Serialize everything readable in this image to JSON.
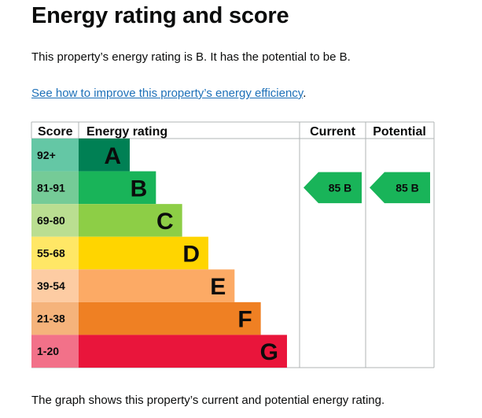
{
  "page": {
    "title": "Energy rating and score",
    "intro": "This property’s energy rating is B. It has the potential to be B.",
    "link": "See how to improve this property’s energy efficiency",
    "link_suffix": ".",
    "footer": "The graph shows this property’s current and potential energy rating."
  },
  "chart_data": {
    "type": "bar",
    "headers": {
      "score": "Score",
      "rating": "Energy rating",
      "current": "Current",
      "potential": "Potential"
    },
    "bands": [
      {
        "range": "92+",
        "letter": "A",
        "color": "#008054",
        "score_bg": "#64c7a5"
      },
      {
        "range": "81-91",
        "letter": "B",
        "color": "#19b459",
        "score_bg": "#75cb97"
      },
      {
        "range": "69-80",
        "letter": "C",
        "color": "#8dce46",
        "score_bg": "#bade91"
      },
      {
        "range": "55-68",
        "letter": "D",
        "color": "#ffd500",
        "score_bg": "#ffe766"
      },
      {
        "range": "39-54",
        "letter": "E",
        "color": "#fcaa65",
        "score_bg": "#fdcca3"
      },
      {
        "range": "21-38",
        "letter": "F",
        "color": "#ef8023",
        "score_bg": "#f5b37b"
      },
      {
        "range": "1-20",
        "letter": "G",
        "color": "#e9153b",
        "score_bg": "#f27189"
      }
    ],
    "current": {
      "score": 85,
      "letter": "B",
      "text": "85 B"
    },
    "potential": {
      "score": 85,
      "letter": "B",
      "text": "85 B"
    }
  }
}
